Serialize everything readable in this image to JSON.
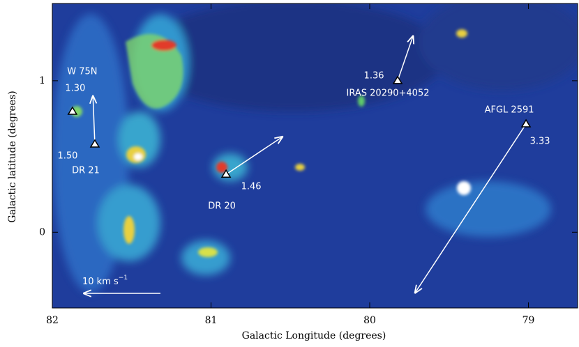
{
  "chart_data": {
    "type": "scatter",
    "x_label": "Galactic Longitude (degrees)",
    "y_label": "Galactic latitude (degrees)",
    "xlim": [
      82,
      78.69
    ],
    "ylim": [
      -0.5,
      1.51
    ],
    "xticks": [
      82,
      81,
      80,
      79
    ],
    "yticks": [
      0,
      1
    ],
    "marker_color": "#000000",
    "arrow_color": "#ffffff",
    "sources": [
      {
        "name": "W 75N",
        "distance": "1.30",
        "l": 81.873,
        "b": 0.797
      },
      {
        "name": "DR 21",
        "distance": "1.50",
        "l": 81.732,
        "b": 0.581,
        "arrow_to": [
          81.744,
          0.899
        ]
      },
      {
        "name": "DR 20",
        "distance": "1.46",
        "l": 80.905,
        "b": 0.382,
        "arrow_to": [
          80.55,
          0.63
        ]
      },
      {
        "name": "IRAS 20290+4052",
        "distance": "1.36",
        "l": 79.824,
        "b": 1.0,
        "arrow_to": [
          79.727,
          1.295
        ]
      },
      {
        "name": "AFGL 2591",
        "distance": "3.33",
        "l": 79.015,
        "b": 0.714,
        "arrow_to": [
          79.714,
          -0.4
        ]
      }
    ],
    "scale_label": "10 km s",
    "scale_label_sup": "−1"
  }
}
